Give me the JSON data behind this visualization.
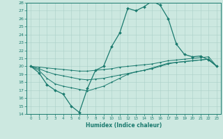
{
  "xlabel": "Humidex (Indice chaleur)",
  "xlim": [
    -0.5,
    23.5
  ],
  "ylim": [
    14,
    28
  ],
  "yticks": [
    14,
    15,
    16,
    17,
    18,
    19,
    20,
    21,
    22,
    23,
    24,
    25,
    26,
    27,
    28
  ],
  "xticks": [
    0,
    1,
    2,
    3,
    4,
    5,
    6,
    7,
    8,
    9,
    10,
    11,
    12,
    13,
    14,
    15,
    16,
    17,
    18,
    19,
    20,
    21,
    22,
    23
  ],
  "bg_color": "#cce8e0",
  "line_color": "#1a7a6e",
  "grid_color": "#aacfc8",
  "series": {
    "humidex": {
      "x": [
        0,
        1,
        2,
        3,
        4,
        5,
        6,
        7,
        8,
        9,
        10,
        11,
        12,
        13,
        14,
        15,
        16,
        17,
        18,
        19,
        20,
        21,
        22,
        23
      ],
      "y": [
        20.0,
        19.2,
        17.7,
        17.0,
        16.5,
        15.0,
        14.2,
        17.2,
        19.5,
        20.0,
        22.5,
        24.2,
        27.3,
        27.0,
        27.5,
        28.2,
        27.7,
        26.0,
        22.8,
        21.5,
        21.2,
        21.3,
        20.8,
        20.0
      ]
    },
    "line2": {
      "x": [
        0,
        1,
        2,
        3,
        4,
        5,
        6,
        7,
        8,
        9,
        10,
        11,
        12,
        13,
        14,
        15,
        16,
        17,
        18,
        19,
        20,
        21,
        22,
        23
      ],
      "y": [
        20.0,
        19.9,
        19.8,
        19.7,
        19.6,
        19.5,
        19.4,
        19.4,
        19.5,
        19.6,
        19.7,
        19.9,
        20.0,
        20.1,
        20.2,
        20.3,
        20.5,
        20.7,
        20.8,
        20.9,
        21.0,
        21.1,
        21.2,
        20.0
      ]
    },
    "line3": {
      "x": [
        0,
        1,
        2,
        3,
        4,
        5,
        6,
        7,
        8,
        9,
        10,
        11,
        12,
        13,
        14,
        15,
        16,
        17,
        18,
        19,
        20,
        21,
        22,
        23
      ],
      "y": [
        20.0,
        19.7,
        19.3,
        19.0,
        18.8,
        18.6,
        18.4,
        18.3,
        18.4,
        18.5,
        18.7,
        18.9,
        19.1,
        19.3,
        19.5,
        19.7,
        20.0,
        20.3,
        20.5,
        20.6,
        20.7,
        20.8,
        20.9,
        20.0
      ]
    },
    "line4": {
      "x": [
        0,
        1,
        2,
        3,
        4,
        5,
        6,
        7,
        8,
        9,
        10,
        11,
        12,
        13,
        14,
        15,
        16,
        17,
        18,
        19,
        20,
        21,
        22,
        23
      ],
      "y": [
        20.0,
        19.5,
        18.5,
        17.8,
        17.5,
        17.3,
        17.1,
        16.9,
        17.2,
        17.5,
        18.0,
        18.5,
        19.0,
        19.3,
        19.5,
        19.8,
        20.1,
        20.4,
        20.5,
        20.6,
        20.7,
        20.8,
        20.9,
        20.0
      ]
    }
  }
}
